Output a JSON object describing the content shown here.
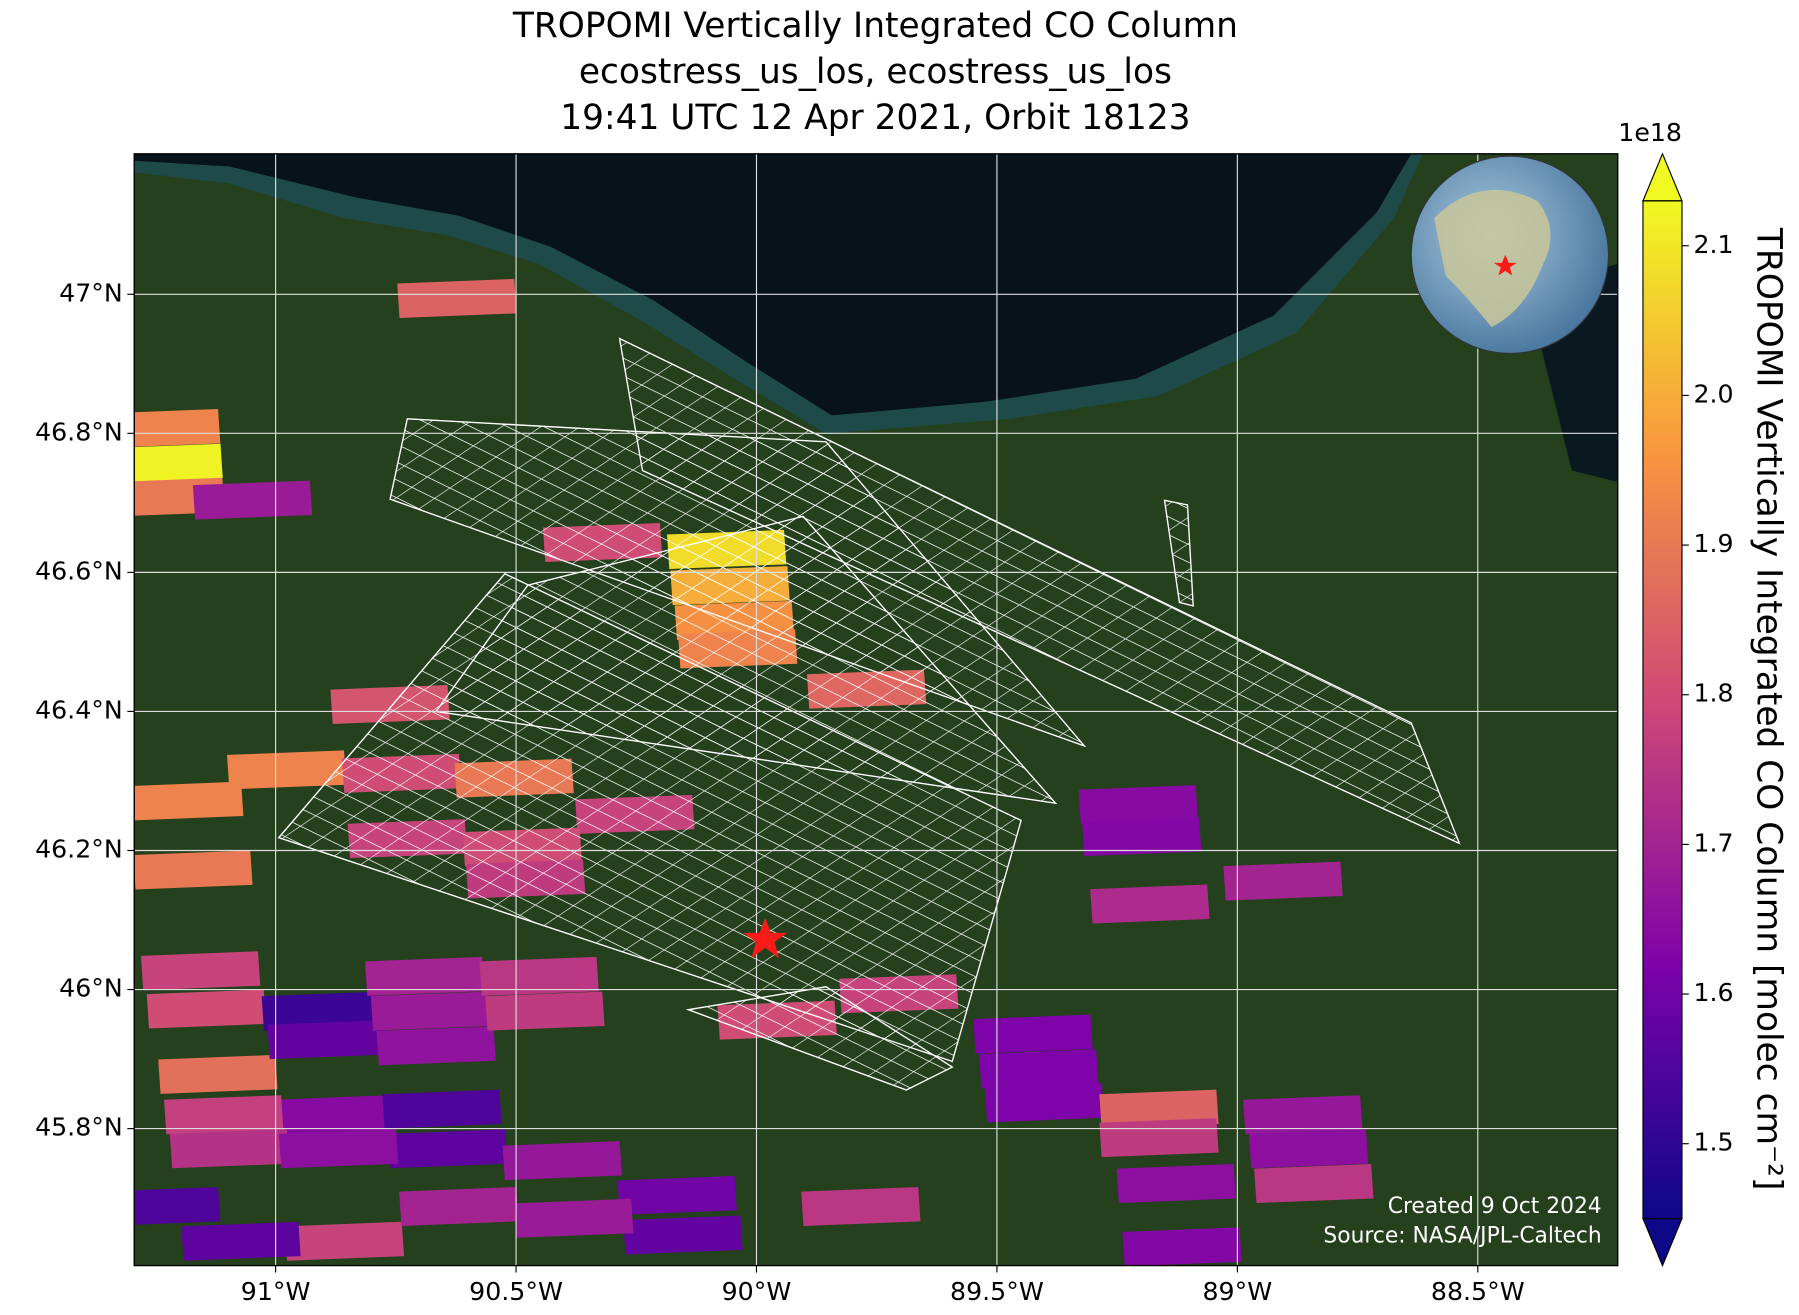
{
  "title": [
    "TROPOMI Vertically Integrated CO Column",
    "ecostress_us_los, ecostress_us_los",
    "19:41 UTC 12 Apr 2021, Orbit 18123"
  ],
  "map": {
    "lonlim": [
      -91.294,
      -88.209
    ],
    "latlim": [
      45.603,
      47.202
    ],
    "lonticks": [
      {
        "value": -91,
        "label": "91°W"
      },
      {
        "value": -90.5,
        "label": "90.5°W"
      },
      {
        "value": -90,
        "label": "90°W"
      },
      {
        "value": -89.5,
        "label": "89.5°W"
      },
      {
        "value": -89,
        "label": "89°W"
      },
      {
        "value": -88.5,
        "label": "88.5°W"
      }
    ],
    "latticks": [
      {
        "value": 47,
        "label": "47°N"
      },
      {
        "value": 46.8,
        "label": "46.8°N"
      },
      {
        "value": 46.6,
        "label": "46.6°N"
      },
      {
        "value": 46.4,
        "label": "46.4°N"
      },
      {
        "value": 46.2,
        "label": "46.2°N"
      },
      {
        "value": 46,
        "label": "46°N"
      },
      {
        "value": 45.8,
        "label": "45.8°N"
      }
    ],
    "grid": true,
    "pixels": [
      {
        "lon": -90.623,
        "lat": 46.994,
        "value": 1.85
      },
      {
        "lon": -91.239,
        "lat": 46.807,
        "value": 1.92
      },
      {
        "lon": -91.234,
        "lat": 46.757,
        "value": 2.12
      },
      {
        "lon": -91.23,
        "lat": 46.708,
        "value": 1.9
      },
      {
        "lon": -91.048,
        "lat": 46.704,
        "value": 1.68
      },
      {
        "lon": -90.32,
        "lat": 46.643,
        "value": 1.8
      },
      {
        "lon": -90.062,
        "lat": 46.633,
        "value": 2.08
      },
      {
        "lon": -90.055,
        "lat": 46.581,
        "value": 2.0
      },
      {
        "lon": -90.046,
        "lat": 46.531,
        "value": 1.95
      },
      {
        "lon": -90.039,
        "lat": 46.49,
        "value": 1.92
      },
      {
        "lon": -89.771,
        "lat": 46.432,
        "value": 1.86
      },
      {
        "lon": -90.762,
        "lat": 46.41,
        "value": 1.82
      },
      {
        "lon": -91.191,
        "lat": 46.271,
        "value": 1.92
      },
      {
        "lon": -90.977,
        "lat": 46.316,
        "value": 1.92
      },
      {
        "lon": -90.738,
        "lat": 46.311,
        "value": 1.8
      },
      {
        "lon": -90.504,
        "lat": 46.304,
        "value": 1.9
      },
      {
        "lon": -90.253,
        "lat": 46.252,
        "value": 1.78
      },
      {
        "lon": -90.726,
        "lat": 46.217,
        "value": 1.78
      },
      {
        "lon": -90.487,
        "lat": 46.205,
        "value": 1.8
      },
      {
        "lon": -90.48,
        "lat": 46.159,
        "value": 1.76
      },
      {
        "lon": -91.172,
        "lat": 46.172,
        "value": 1.9
      },
      {
        "lon": -89.206,
        "lat": 46.266,
        "value": 1.64
      },
      {
        "lon": -89.199,
        "lat": 46.22,
        "value": 1.63
      },
      {
        "lon": -88.905,
        "lat": 46.156,
        "value": 1.7
      },
      {
        "lon": -89.182,
        "lat": 46.123,
        "value": 1.72
      },
      {
        "lon": -89.704,
        "lat": 45.994,
        "value": 1.78
      },
      {
        "lon": -89.957,
        "lat": 45.956,
        "value": 1.8
      },
      {
        "lon": -89.425,
        "lat": 45.936,
        "value": 1.62
      },
      {
        "lon": -89.413,
        "lat": 45.886,
        "value": 1.62
      },
      {
        "lon": -89.401,
        "lat": 45.837,
        "value": 1.62
      },
      {
        "lon": -89.163,
        "lat": 45.828,
        "value": 1.85
      },
      {
        "lon": -89.163,
        "lat": 45.787,
        "value": 1.76
      },
      {
        "lon": -88.864,
        "lat": 45.82,
        "value": 1.67
      },
      {
        "lon": -88.852,
        "lat": 45.771,
        "value": 1.65
      },
      {
        "lon": -88.841,
        "lat": 45.721,
        "value": 1.75
      },
      {
        "lon": -89.127,
        "lat": 45.721,
        "value": 1.65
      },
      {
        "lon": -89.115,
        "lat": 45.63,
        "value": 1.63
      },
      {
        "lon": -91.156,
        "lat": 46.027,
        "value": 1.78
      },
      {
        "lon": -91.144,
        "lat": 45.972,
        "value": 1.8
      },
      {
        "lon": -91.12,
        "lat": 45.878,
        "value": 1.88
      },
      {
        "lon": -90.905,
        "lat": 45.969,
        "value": 1.52
      },
      {
        "lon": -90.893,
        "lat": 45.928,
        "value": 1.58
      },
      {
        "lon": -90.69,
        "lat": 46.019,
        "value": 1.7
      },
      {
        "lon": -90.678,
        "lat": 45.969,
        "value": 1.68
      },
      {
        "lon": -90.666,
        "lat": 45.919,
        "value": 1.66
      },
      {
        "lon": -90.452,
        "lat": 46.019,
        "value": 1.75
      },
      {
        "lon": -90.44,
        "lat": 45.969,
        "value": 1.76
      },
      {
        "lon": -90.881,
        "lat": 45.82,
        "value": 1.64
      },
      {
        "lon": -90.654,
        "lat": 45.828,
        "value": 1.55
      },
      {
        "lon": -90.642,
        "lat": 45.771,
        "value": 1.57
      },
      {
        "lon": -91.108,
        "lat": 45.82,
        "value": 1.77
      },
      {
        "lon": -91.096,
        "lat": 45.771,
        "value": 1.74
      },
      {
        "lon": -90.869,
        "lat": 45.771,
        "value": 1.65
      },
      {
        "lon": -90.404,
        "lat": 45.754,
        "value": 1.67
      },
      {
        "lon": -90.165,
        "lat": 45.704,
        "value": 1.6
      },
      {
        "lon": -90.153,
        "lat": 45.647,
        "value": 1.58
      },
      {
        "lon": -89.783,
        "lat": 45.688,
        "value": 1.75
      },
      {
        "lon": -90.857,
        "lat": 45.638,
        "value": 1.78
      },
      {
        "lon": -90.619,
        "lat": 45.688,
        "value": 1.7
      },
      {
        "lon": -90.38,
        "lat": 45.671,
        "value": 1.68
      },
      {
        "lon": -91.239,
        "lat": 45.688,
        "value": 1.55
      },
      {
        "lon": -91.072,
        "lat": 45.638,
        "value": 1.57
      }
    ]
  },
  "colorbar": {
    "label": "TROPOMI Vertically Integrated CO Column [molec cm⁻²]",
    "exponent": "1e18",
    "colormap": "plasma",
    "clim": [
      1.45,
      2.13
    ],
    "ticks": [
      1.5,
      1.6,
      1.7,
      1.8,
      1.9,
      {
        "value": 2,
        "label": "2.0"
      },
      2.1
    ]
  },
  "credits": [
    "Created 9 Oct 2024",
    "Source: NASA/JPL-Caltech"
  ]
}
